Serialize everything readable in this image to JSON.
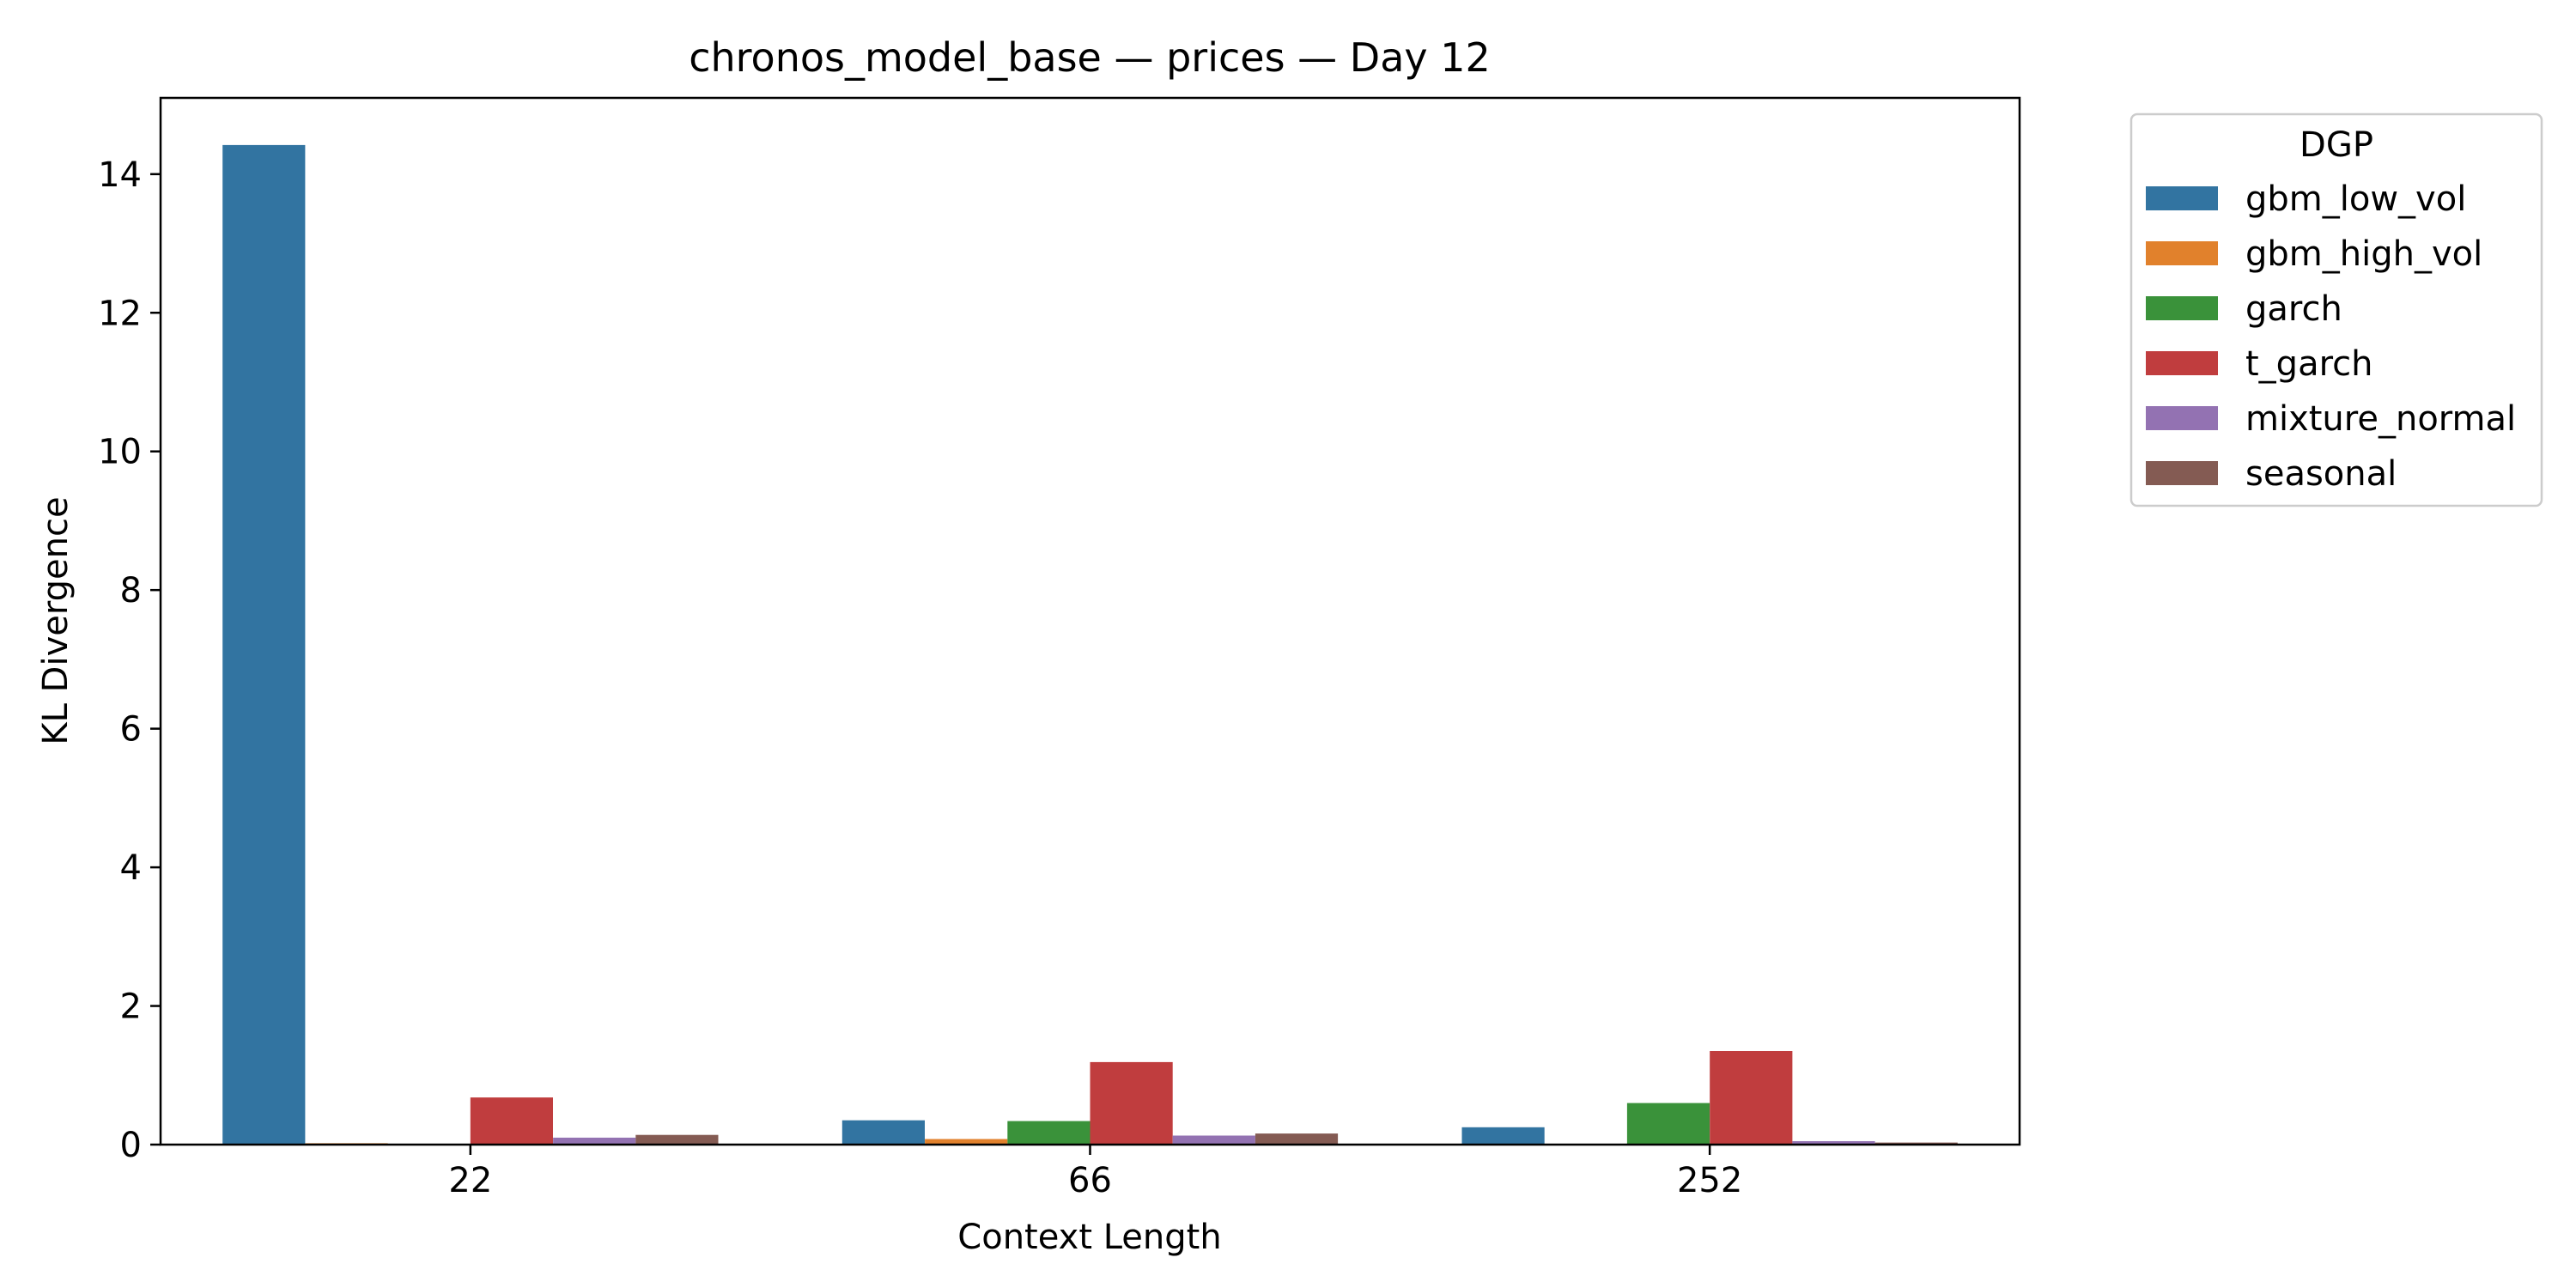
{
  "chart_data": {
    "type": "bar",
    "title": "chronos_model_base — prices — Day 12",
    "xlabel": "Context Length",
    "ylabel": "KL Divergence",
    "categories": [
      "22",
      "66",
      "252"
    ],
    "ylim": [
      0,
      15.1
    ],
    "yticks": [
      0,
      2,
      4,
      6,
      8,
      10,
      12,
      14
    ],
    "grid": false,
    "legend": {
      "title": "DGP",
      "placement": "outside-top-right"
    },
    "series": [
      {
        "name": "gbm_low_vol",
        "color": "#3274a1",
        "values": [
          14.42,
          0.35,
          0.25
        ]
      },
      {
        "name": "gbm_high_vol",
        "color": "#e1812c",
        "values": [
          0.02,
          0.08,
          0.0
        ]
      },
      {
        "name": "garch",
        "color": "#3a923a",
        "values": [
          0.0,
          0.34,
          0.6
        ]
      },
      {
        "name": "t_garch",
        "color": "#c03d3e",
        "values": [
          0.68,
          1.19,
          1.35
        ]
      },
      {
        "name": "mixture_normal",
        "color": "#9372b2",
        "values": [
          0.1,
          0.13,
          0.05
        ]
      },
      {
        "name": "seasonal",
        "color": "#845b53",
        "values": [
          0.14,
          0.16,
          0.03
        ]
      }
    ]
  }
}
